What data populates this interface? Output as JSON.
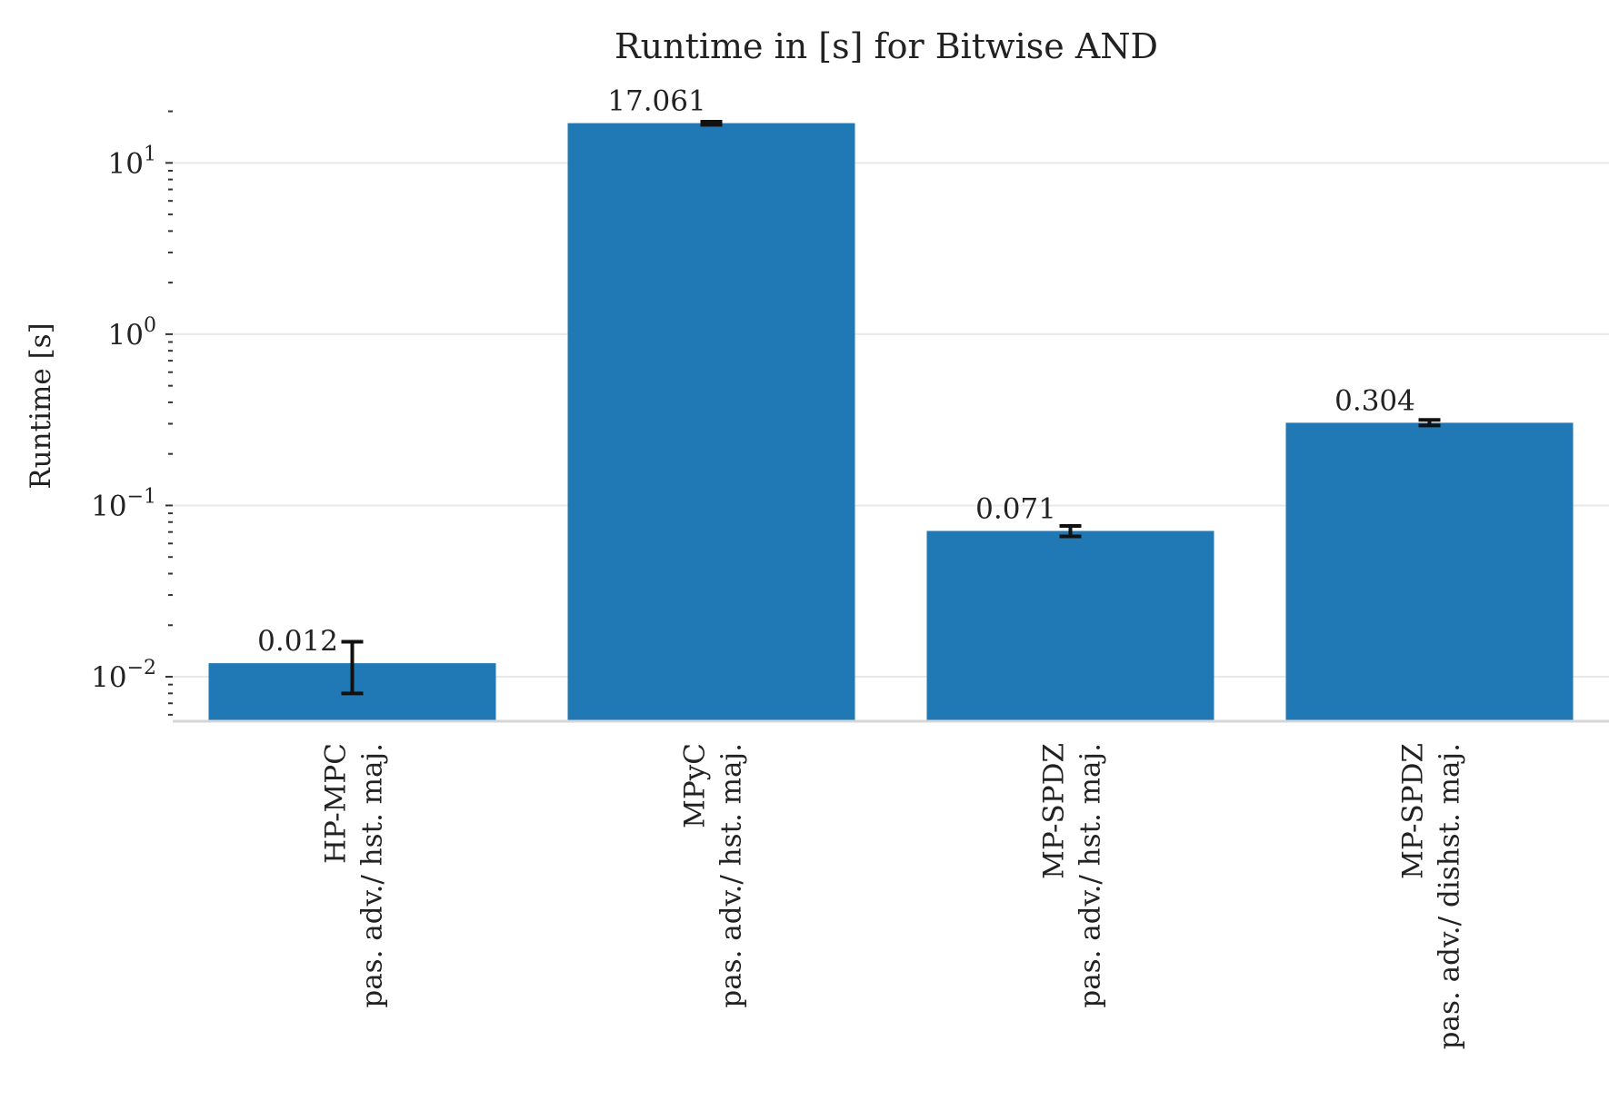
{
  "chart_data": {
    "type": "bar",
    "title": "Runtime in [s] for Bitwise AND",
    "ylabel": "Runtime [s]",
    "xlabel": "",
    "yscale": "log",
    "ylim": [
      0.0055,
      28
    ],
    "yticks": [
      {
        "value": 0.01,
        "base": "10",
        "exp": "−2"
      },
      {
        "value": 0.1,
        "base": "10",
        "exp": "−1"
      },
      {
        "value": 1,
        "base": "10",
        "exp": "0"
      },
      {
        "value": 10,
        "base": "10",
        "exp": "1"
      }
    ],
    "grid": true,
    "bar_color": "#2078b4",
    "categories": [
      {
        "line1": "HP-MPC",
        "line2": "pas. adv./ hst. maj."
      },
      {
        "line1": "MPyC",
        "line2": "pas. adv./ hst. maj."
      },
      {
        "line1": "MP-SPDZ",
        "line2": "pas. adv./ hst. maj."
      },
      {
        "line1": "MP-SPDZ",
        "line2": "pas. adv./ dishst. maj."
      }
    ],
    "values": [
      0.012,
      17.061,
      0.071,
      0.304
    ],
    "value_labels": [
      "0.012",
      "17.061",
      "0.071",
      "0.304"
    ],
    "errors": [
      {
        "low": 0.008,
        "high": 0.016
      },
      {
        "low": 16.7,
        "high": 17.4
      },
      {
        "low": 0.066,
        "high": 0.076
      },
      {
        "low": 0.293,
        "high": 0.316
      }
    ]
  }
}
